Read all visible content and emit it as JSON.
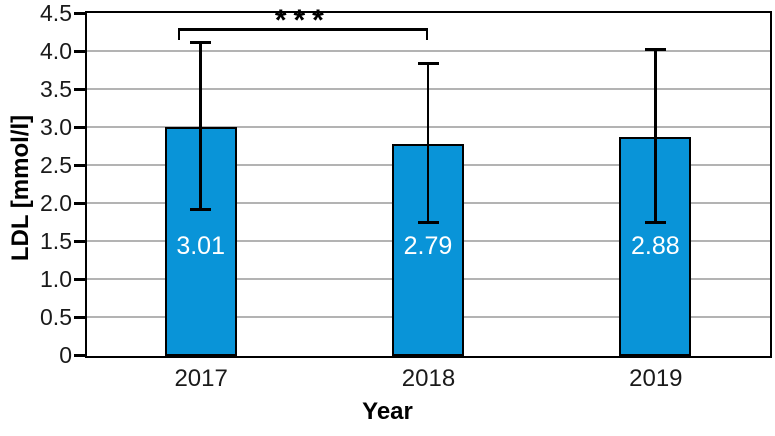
{
  "figure": {
    "background": "#ffffff"
  },
  "chart_data": {
    "type": "bar",
    "title": "",
    "xlabel": "Year",
    "ylabel": "LDL [mmol/l]",
    "categories": [
      "2017",
      "2018",
      "2019"
    ],
    "values": [
      3.01,
      2.79,
      2.88
    ],
    "value_labels": [
      "3.01",
      "2.79",
      "2.88"
    ],
    "error_bars": [
      1.1,
      1.05,
      1.14
    ],
    "ylim": [
      0,
      4.5
    ],
    "yticks": [
      0,
      0.5,
      1.0,
      1.5,
      2.0,
      2.5,
      3.0,
      3.5,
      4.0,
      4.5
    ],
    "ytick_labels": [
      "0",
      "0.5",
      "1.0",
      "1.5",
      "2.0",
      "2.5",
      "3.0",
      "3.5",
      "4.0",
      "4.5"
    ],
    "grid": true,
    "legend_position": "none",
    "bar_color": "#0994d8",
    "bar_border_color": "#000000",
    "grid_color": "#b3b3b3",
    "axis_color": "#000000",
    "value_label_color": "#ffffff",
    "significance": {
      "label": "***",
      "from_category": "2017",
      "to_category": "2018"
    }
  }
}
